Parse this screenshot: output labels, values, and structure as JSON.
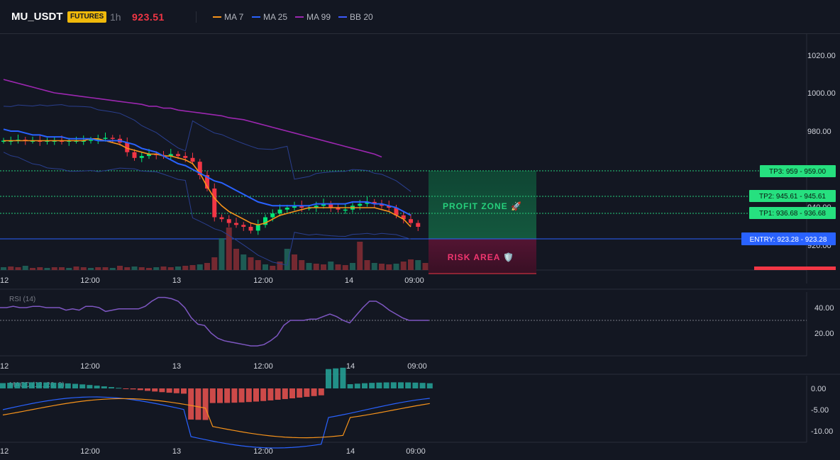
{
  "header": {
    "symbol": "MU_USDT",
    "badge": "FUTURES",
    "interval": "1h",
    "price": "923.51",
    "legend": [
      {
        "name": "MA 7",
        "color": "#f7931a"
      },
      {
        "name": "MA 25",
        "color": "#2962ff"
      },
      {
        "name": "MA 99",
        "color": "#9c27b0"
      },
      {
        "name": "BB 20",
        "color": "#2a3f8f"
      }
    ]
  },
  "colors": {
    "background": "#131722",
    "up": "#26a69a",
    "up_bright": "#00e676",
    "down": "#f23645",
    "ma7": "#f7931a",
    "ma25": "#2962ff",
    "ma99": "#9c27b0",
    "bb": "#2a3f8f",
    "rsi": "#7e57c2",
    "macd": "#2962ff",
    "signal": "#f7931a"
  },
  "price_axis": {
    "ticks": [
      "1020.00",
      "1000.00",
      "980.00",
      "940.00",
      "920.00"
    ],
    "range": [
      913,
      1030
    ]
  },
  "levels": [
    {
      "label": "TP3: 959 - 959.00",
      "value": 959.0
    },
    {
      "label": "TP2: 945.61 - 945.61",
      "value": 945.61
    },
    {
      "label": "TP1: 936.68 - 936.68",
      "value": 936.68
    }
  ],
  "entry": {
    "label": "ENTRY: 923.28 - 923.28",
    "value": 923.28
  },
  "zones": {
    "profit": "PROFIT ZONE 🚀",
    "risk": "RISK AREA 🛡️"
  },
  "time_axis": [
    "12",
    "12:00",
    "13",
    "12:00",
    "14",
    "09:00"
  ],
  "rsi": {
    "title": "RSI (14)",
    "ticks": [
      "40.00",
      "20.00"
    ],
    "range": [
      0,
      55
    ]
  },
  "macd": {
    "title": "MACD (12, 26, 9)",
    "ticks": [
      "0.00",
      "-5.00",
      "-10.00"
    ],
    "range": [
      -12,
      2
    ]
  },
  "chart_data": {
    "type": "candlestick",
    "title": "MU_USDT",
    "series": [
      {
        "name": "MA 7",
        "values": [
          975,
          975,
          975,
          975,
          975,
          975,
          975,
          975,
          975,
          975,
          975,
          975,
          976,
          976,
          975,
          974,
          973,
          971,
          970,
          969,
          968,
          968,
          967,
          967,
          966,
          965,
          963,
          958,
          951,
          945,
          941,
          938,
          936,
          934,
          932,
          931,
          932,
          934,
          936,
          937,
          938,
          939,
          940,
          940,
          940,
          940,
          940,
          940,
          940,
          940,
          940,
          940,
          939,
          938,
          936,
          934,
          930
        ]
      },
      {
        "name": "MA 25",
        "values": [
          981,
          980,
          980,
          979,
          978,
          978,
          977,
          977,
          977,
          976,
          976,
          976,
          976,
          975,
          975,
          975,
          975,
          974,
          973,
          971,
          970,
          969,
          967,
          965,
          963,
          962,
          960,
          958,
          956,
          954,
          953,
          951,
          949,
          947,
          945,
          943,
          942,
          941,
          941,
          941,
          941,
          941,
          941,
          942,
          942,
          942,
          942,
          942,
          943,
          943,
          943,
          942,
          942,
          941,
          940,
          938,
          936
        ]
      },
      {
        "name": "MA 99",
        "values": [
          1007,
          1006,
          1005,
          1004,
          1003,
          1002,
          1001,
          1000,
          999.5,
          999,
          998.5,
          998,
          997.5,
          997,
          996.5,
          996,
          995.5,
          995,
          994.5,
          994,
          993,
          993,
          992,
          992,
          991,
          990.5,
          990,
          989.5,
          989,
          988.5,
          988,
          987,
          986.5,
          986,
          985,
          984,
          983,
          982,
          981,
          980,
          979,
          978,
          977,
          976,
          975,
          974,
          973,
          972,
          971,
          970,
          969,
          968,
          966.5
        ]
      }
    ],
    "rsi_values": [
      40,
      40,
      41,
      40,
      40,
      41,
      41,
      40,
      40,
      40,
      38,
      39,
      38,
      41,
      41,
      40,
      37,
      38,
      39,
      39,
      39,
      39,
      41,
      45,
      48,
      48,
      47,
      45,
      40,
      32,
      27,
      26,
      20,
      16,
      14,
      13,
      12,
      11,
      10,
      10,
      11,
      14,
      18,
      26,
      30,
      30,
      30,
      31,
      31,
      33,
      35,
      33,
      30,
      28,
      34,
      40,
      45,
      45,
      42,
      38,
      35,
      32,
      30,
      30,
      30,
      30
    ]
  }
}
